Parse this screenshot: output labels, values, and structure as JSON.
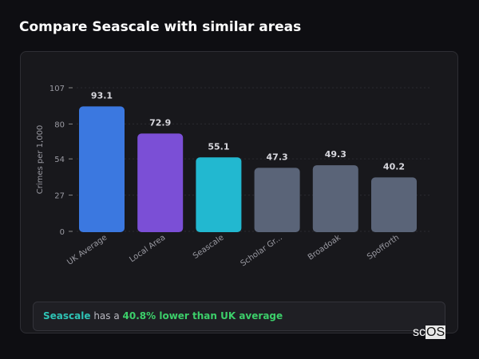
{
  "title": "Compare Seascale with similar areas",
  "chart_data": {
    "type": "bar",
    "categories": [
      "UK Average",
      "Local Area",
      "Seascale",
      "Scholar Gr...",
      "Broadoak",
      "Spofforth"
    ],
    "values": [
      93.1,
      72.9,
      55.1,
      47.3,
      49.3,
      40.2
    ],
    "value_labels": [
      "93.1",
      "72.9",
      "55.1",
      "47.3",
      "49.3",
      "40.2"
    ],
    "colors": [
      "#3b78e0",
      "#7b4fd6",
      "#22b8d0",
      "#5a6478",
      "#5a6478",
      "#5a6478"
    ],
    "ylabel": "Crimes per 1,000",
    "ylim": [
      0,
      107
    ],
    "yticks": [
      0,
      27,
      54,
      80,
      107
    ],
    "ytick_labels": [
      "0",
      "27",
      "54",
      "80",
      "107"
    ],
    "grid": true
  },
  "insight": {
    "area": "Seascale",
    "middle": "has a",
    "highlight": "40.8% lower than UK average"
  },
  "logo": {
    "text_plain": "sc",
    "text_box": "OS"
  }
}
